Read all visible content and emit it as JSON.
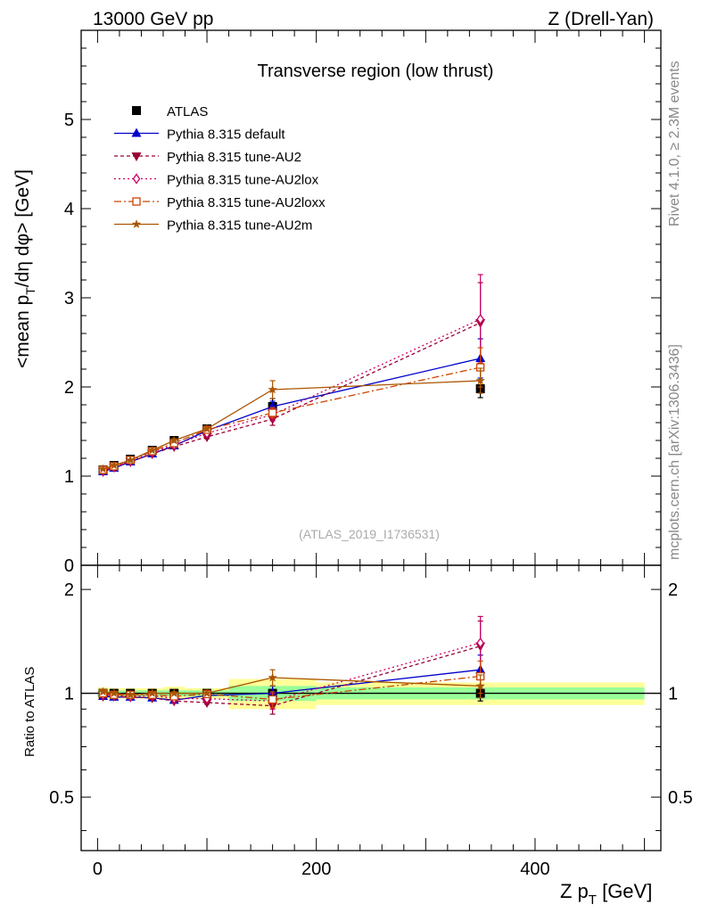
{
  "header": {
    "left": "13000 GeV pp",
    "right": "Z (Drell-Yan)"
  },
  "side_labels": {
    "rivet": "Rivet 4.1.0, ≥ 2.3M events",
    "mcplots": "mcplots.cern.ch [arXiv:1306.3436]"
  },
  "chart_data": [
    {
      "type": "line",
      "title": "Transverse region (low thrust)",
      "watermark": "(ATLAS_2019_I1736531)",
      "ylabel": "<mean p_T/dη dφ> [GeV]",
      "ylabel_main": "<mean p",
      "ylabel_sub": "T",
      "ylabel_rest": "/dη dφ> [GeV]",
      "xlim": [
        -15,
        515
      ],
      "ylim": [
        0,
        6
      ],
      "yticks": [
        0,
        1,
        2,
        3,
        4,
        5
      ],
      "ytick_labels": [
        "0",
        "1",
        "2",
        "3",
        "4",
        "5"
      ],
      "x": [
        5,
        15,
        30,
        50,
        70,
        100,
        160,
        350
      ],
      "series": [
        {
          "name": "ATLAS",
          "color": "#000000",
          "marker": "square",
          "dash": "none",
          "values": [
            1.07,
            1.12,
            1.19,
            1.29,
            1.4,
            1.53,
            1.78,
            1.98
          ],
          "errors": [
            0.02,
            0.02,
            0.02,
            0.03,
            0.03,
            0.04,
            0.09,
            0.1
          ]
        },
        {
          "name": "Pythia 8.315 default",
          "color": "#0000cc",
          "marker": "triangle-up",
          "dash": "none",
          "values": [
            1.05,
            1.09,
            1.16,
            1.25,
            1.34,
            1.51,
            1.78,
            2.32
          ],
          "errors": [
            0.01,
            0.01,
            0.01,
            0.01,
            0.02,
            0.02,
            0.06,
            0.22
          ]
        },
        {
          "name": "Pythia 8.315 tune-AU2",
          "color": "#990033",
          "marker": "triangle-down",
          "dash": "4,3",
          "values": [
            1.05,
            1.1,
            1.16,
            1.25,
            1.33,
            1.44,
            1.64,
            2.72
          ],
          "errors": [
            0.01,
            0.01,
            0.01,
            0.01,
            0.02,
            0.02,
            0.07,
            0.45
          ]
        },
        {
          "name": "Pythia 8.315 tune-AU2lox",
          "color": "#cc0066",
          "marker": "diamond-open",
          "dash": "2,3",
          "values": [
            1.06,
            1.1,
            1.17,
            1.27,
            1.35,
            1.48,
            1.69,
            2.76
          ],
          "errors": [
            0.01,
            0.01,
            0.01,
            0.01,
            0.02,
            0.02,
            0.07,
            0.5
          ]
        },
        {
          "name": "Pythia 8.315 tune-AU2loxx",
          "color": "#cc4400",
          "marker": "square-open",
          "dash": "8,3,2,3",
          "values": [
            1.07,
            1.11,
            1.18,
            1.28,
            1.37,
            1.52,
            1.71,
            2.22
          ],
          "errors": [
            0.01,
            0.01,
            0.01,
            0.01,
            0.02,
            0.02,
            0.06,
            0.22
          ]
        },
        {
          "name": "Pythia 8.315 tune-AU2m",
          "color": "#aa5500",
          "marker": "star",
          "dash": "none",
          "values": [
            1.08,
            1.12,
            1.18,
            1.29,
            1.4,
            1.53,
            1.97,
            2.07
          ],
          "errors": [
            0.01,
            0.01,
            0.01,
            0.01,
            0.02,
            0.02,
            0.1,
            0.14
          ]
        }
      ]
    },
    {
      "type": "line",
      "title": "",
      "ylabel": "Ratio to ATLAS",
      "xlabel": "Z p_T [GeV]",
      "xlabel_main": "Z p",
      "xlabel_sub": "T",
      "xlabel_rest": " [GeV]",
      "xlim": [
        -15,
        515
      ],
      "ylim": [
        0.35,
        2.35
      ],
      "xticks": [
        0,
        200,
        400
      ],
      "xtick_labels": [
        "0",
        "200",
        "400"
      ],
      "yticks": [
        0.5,
        1,
        2
      ],
      "ytick_labels": [
        "0.5",
        "1",
        "2"
      ],
      "reference": 1.0,
      "bands": [
        {
          "x0": 0,
          "x1": 10,
          "inner": 0.02,
          "outer": 0.04
        },
        {
          "x0": 10,
          "x1": 20,
          "inner": 0.02,
          "outer": 0.035
        },
        {
          "x0": 20,
          "x1": 40,
          "inner": 0.02,
          "outer": 0.035
        },
        {
          "x0": 40,
          "x1": 60,
          "inner": 0.02,
          "outer": 0.035
        },
        {
          "x0": 60,
          "x1": 80,
          "inner": 0.02,
          "outer": 0.045
        },
        {
          "x0": 80,
          "x1": 120,
          "inner": 0.02,
          "outer": 0.035
        },
        {
          "x0": 120,
          "x1": 200,
          "inner": 0.05,
          "outer": 0.1
        },
        {
          "x0": 200,
          "x1": 500,
          "inner": 0.04,
          "outer": 0.075
        }
      ],
      "x": [
        5,
        15,
        30,
        50,
        70,
        100,
        160,
        350
      ],
      "series": [
        {
          "name": "ATLAS",
          "values": [
            1.0,
            1.0,
            1.0,
            1.0,
            1.0,
            1.0,
            1.0,
            1.0
          ],
          "errors": [
            0.02,
            0.02,
            0.02,
            0.02,
            0.02,
            0.02,
            0.05,
            0.05
          ]
        },
        {
          "name": "Pythia 8.315 default",
          "values": [
            0.98,
            0.975,
            0.975,
            0.97,
            0.955,
            0.985,
            1.0,
            1.17
          ],
          "errors": [
            0.01,
            0.01,
            0.01,
            0.01,
            0.01,
            0.01,
            0.05,
            0.12
          ]
        },
        {
          "name": "Pythia 8.315 tune-AU2",
          "values": [
            0.98,
            0.98,
            0.975,
            0.97,
            0.95,
            0.94,
            0.92,
            1.37
          ],
          "errors": [
            0.01,
            0.01,
            0.01,
            0.01,
            0.01,
            0.01,
            0.05,
            0.25
          ]
        },
        {
          "name": "Pythia 8.315 tune-AU2lox",
          "values": [
            0.99,
            0.985,
            0.98,
            0.985,
            0.965,
            0.965,
            0.95,
            1.4
          ],
          "errors": [
            0.01,
            0.01,
            0.01,
            0.01,
            0.01,
            0.01,
            0.05,
            0.27
          ]
        },
        {
          "name": "Pythia 8.315 tune-AU2loxx",
          "values": [
            1.0,
            0.99,
            0.99,
            0.99,
            0.98,
            0.995,
            0.96,
            1.12
          ],
          "errors": [
            0.01,
            0.01,
            0.01,
            0.01,
            0.01,
            0.01,
            0.05,
            0.12
          ]
        },
        {
          "name": "Pythia 8.315 tune-AU2m",
          "values": [
            1.01,
            1.0,
            0.99,
            1.0,
            1.0,
            1.0,
            1.11,
            1.05
          ],
          "errors": [
            0.01,
            0.01,
            0.01,
            0.01,
            0.01,
            0.01,
            0.06,
            0.08
          ]
        }
      ]
    }
  ]
}
